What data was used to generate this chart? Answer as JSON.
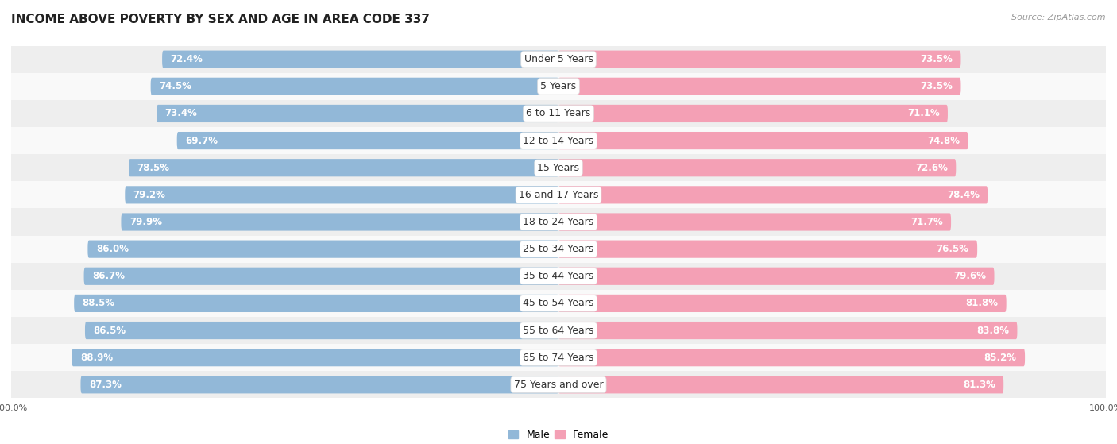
{
  "title": "INCOME ABOVE POVERTY BY SEX AND AGE IN AREA CODE 337",
  "source": "Source: ZipAtlas.com",
  "categories": [
    "Under 5 Years",
    "5 Years",
    "6 to 11 Years",
    "12 to 14 Years",
    "15 Years",
    "16 and 17 Years",
    "18 to 24 Years",
    "25 to 34 Years",
    "35 to 44 Years",
    "45 to 54 Years",
    "55 to 64 Years",
    "65 to 74 Years",
    "75 Years and over"
  ],
  "male_values": [
    72.4,
    74.5,
    73.4,
    69.7,
    78.5,
    79.2,
    79.9,
    86.0,
    86.7,
    88.5,
    86.5,
    88.9,
    87.3
  ],
  "female_values": [
    73.5,
    73.5,
    71.1,
    74.8,
    72.6,
    78.4,
    71.7,
    76.5,
    79.6,
    81.8,
    83.8,
    85.2,
    81.3
  ],
  "male_color": "#92b8d8",
  "female_color": "#f4a0b5",
  "male_label": "Male",
  "female_label": "Female",
  "row_bg_color_odd": "#eeeeee",
  "row_bg_color_even": "#f9f9f9",
  "max_val": 100.0,
  "title_fontsize": 11,
  "label_fontsize": 9,
  "value_fontsize": 8.5,
  "axis_label_fontsize": 8,
  "legend_fontsize": 9
}
